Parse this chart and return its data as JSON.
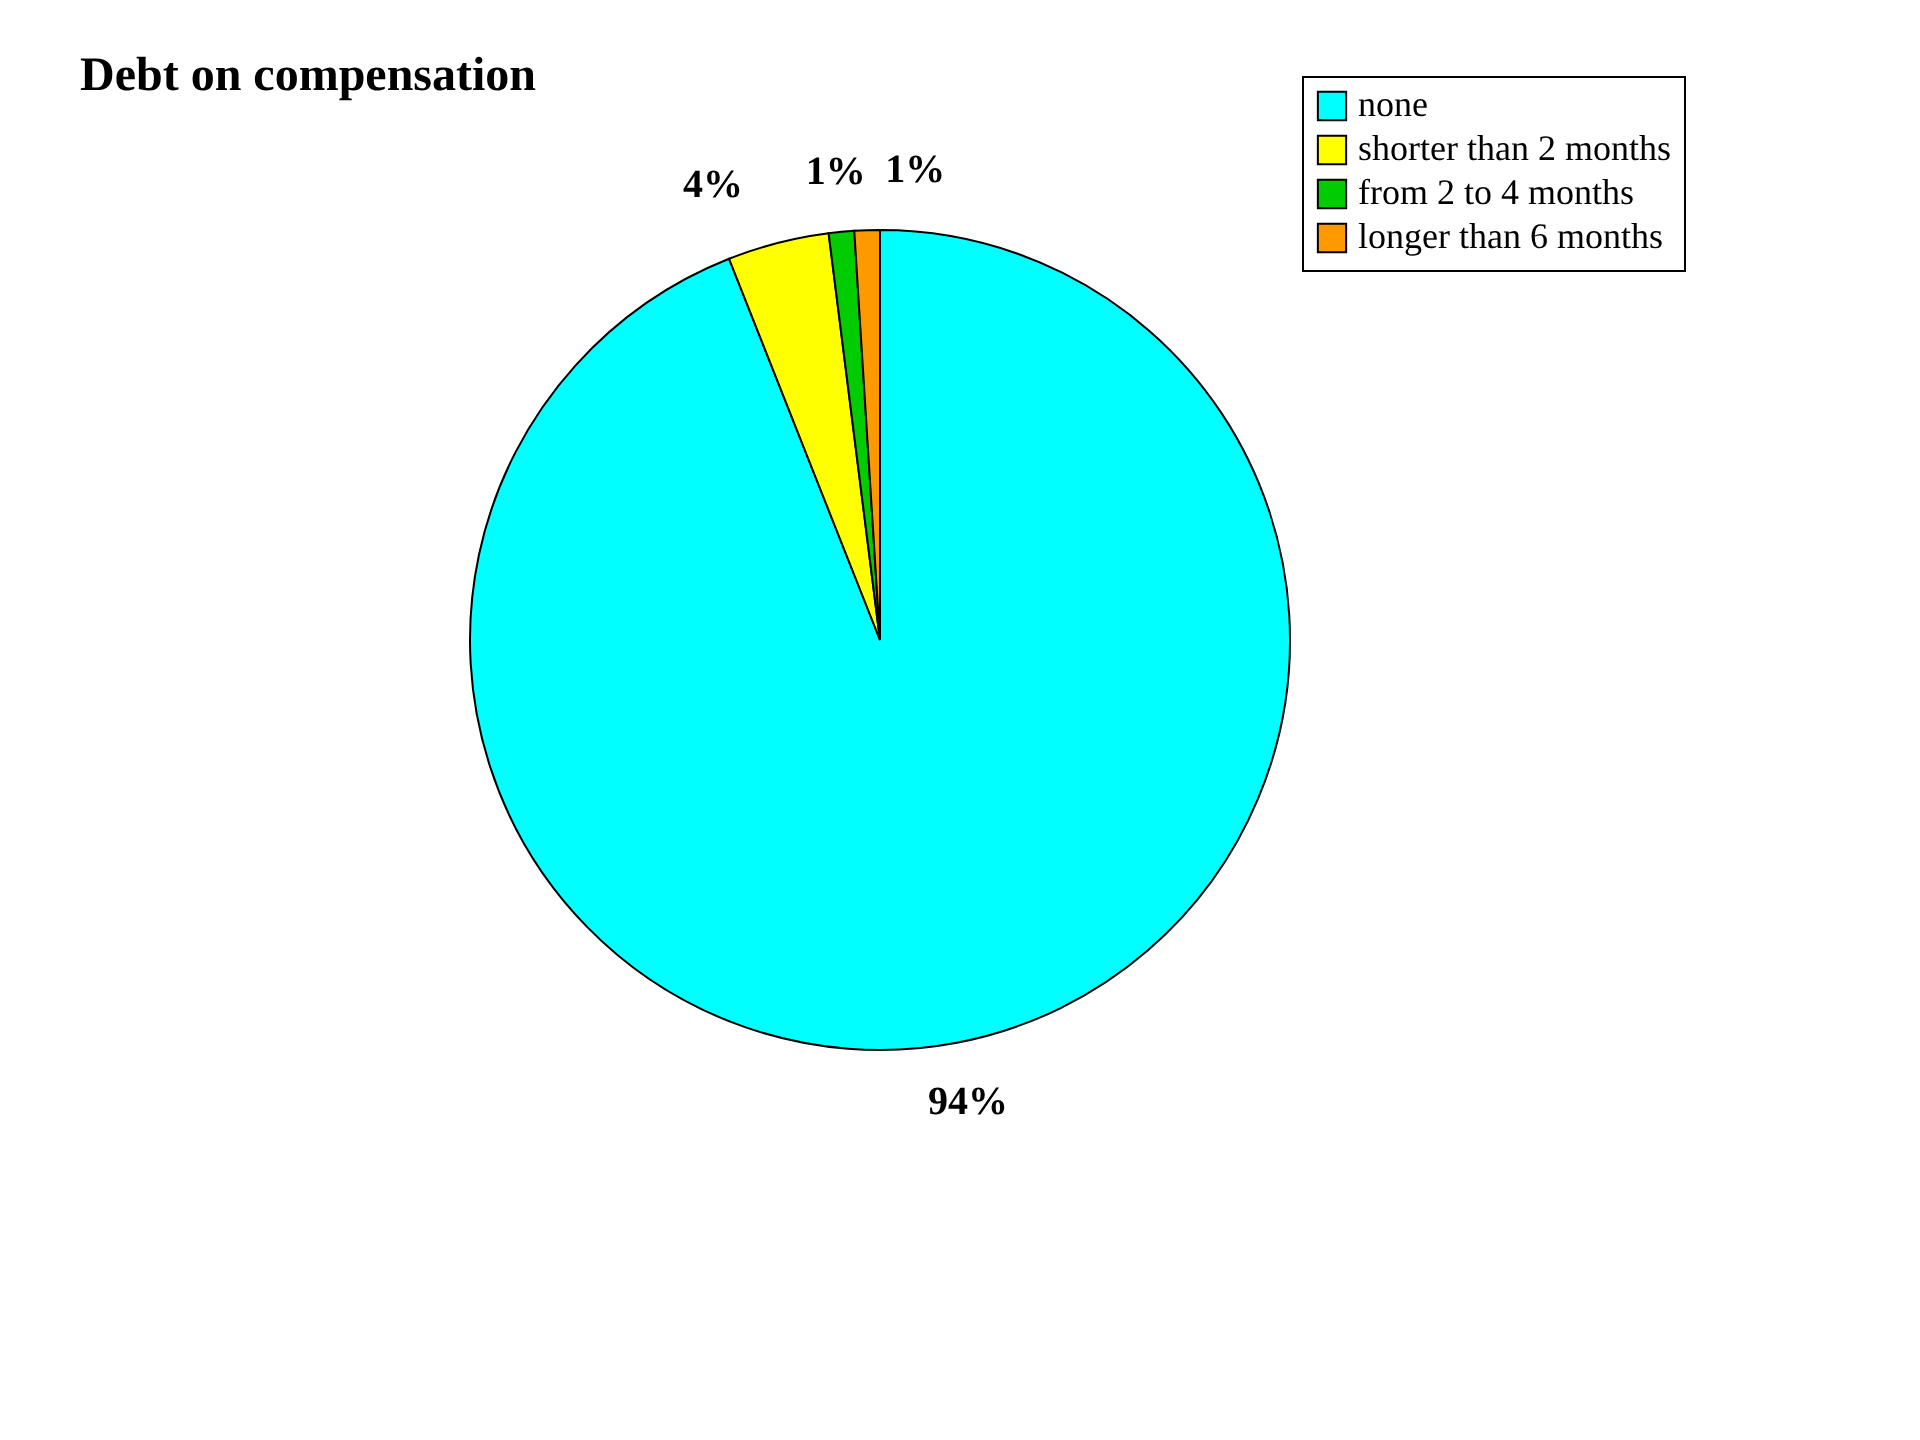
{
  "chart_data": {
    "type": "pie",
    "title": "Debt on compensation",
    "categories": [
      "none",
      "shorter than 2 months",
      "from 2 to 4 months",
      "longer than 6 months"
    ],
    "values": [
      94,
      4,
      1,
      1
    ],
    "colors": [
      "#00ffff",
      "#ffff00",
      "#00cc00",
      "#ff9900"
    ],
    "value_labels": [
      "94%",
      "4%",
      "1%",
      "1%"
    ],
    "legend": "top right"
  }
}
